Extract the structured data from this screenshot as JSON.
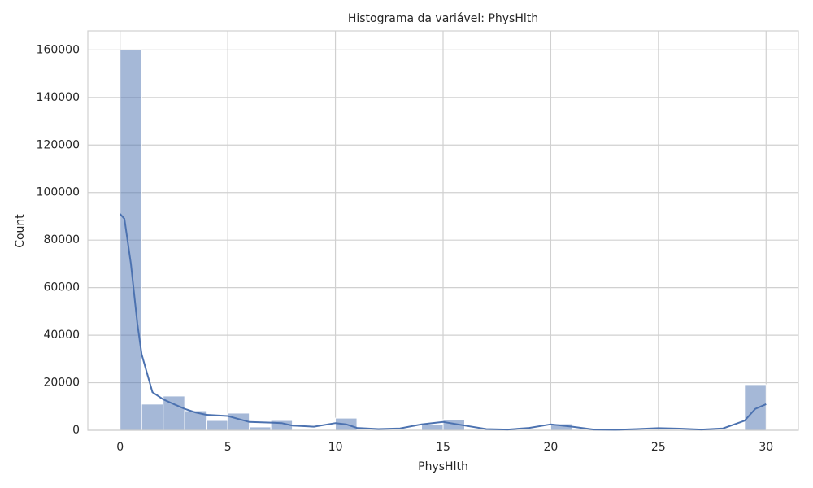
{
  "chart_data": {
    "type": "histogram",
    "title": "Histograma da variável: PhysHlth",
    "xlabel": "PhysHlth",
    "ylabel": "Count",
    "bins": [
      0,
      1,
      2,
      3,
      4,
      5,
      6,
      7,
      8,
      9,
      10,
      11,
      12,
      13,
      14,
      15,
      16,
      17,
      18,
      19,
      20,
      21,
      22,
      23,
      24,
      25,
      26,
      27,
      28,
      29,
      30
    ],
    "counts": [
      160000,
      11000,
      14400,
      8200,
      4100,
      7200,
      1400,
      4100,
      0,
      0,
      5100,
      0,
      0,
      0,
      2400,
      4500,
      0,
      0,
      0,
      0,
      2700,
      0,
      0,
      0,
      0,
      0,
      0,
      0,
      0,
      19200
    ],
    "color": "#4c72b0",
    "kde": {
      "x": [
        0,
        0.2,
        0.5,
        0.8,
        1,
        1.5,
        2,
        2.5,
        3,
        3.5,
        4,
        5,
        6,
        7,
        7.5,
        8,
        9,
        10,
        10.5,
        11,
        12,
        13,
        14,
        15,
        16,
        17,
        18,
        19,
        20,
        21,
        22,
        23,
        24,
        25,
        26,
        27,
        28,
        29,
        29.5,
        30
      ],
      "y": [
        91000,
        89000,
        70000,
        45000,
        32000,
        16000,
        13000,
        11000,
        9000,
        7500,
        6500,
        6000,
        3500,
        3200,
        3000,
        2000,
        1500,
        3000,
        2500,
        1000,
        500,
        800,
        2500,
        3500,
        2000,
        500,
        300,
        1000,
        2500,
        1500,
        300,
        200,
        500,
        900,
        700,
        300,
        800,
        4000,
        9000,
        11000
      ]
    },
    "xlim": [
      -1.5,
      31.5
    ],
    "ylim": [
      0,
      168000
    ],
    "xticks": [
      0,
      5,
      10,
      15,
      20,
      25,
      30
    ],
    "yticks": [
      0,
      20000,
      40000,
      60000,
      80000,
      100000,
      120000,
      140000,
      160000
    ],
    "grid": true
  }
}
